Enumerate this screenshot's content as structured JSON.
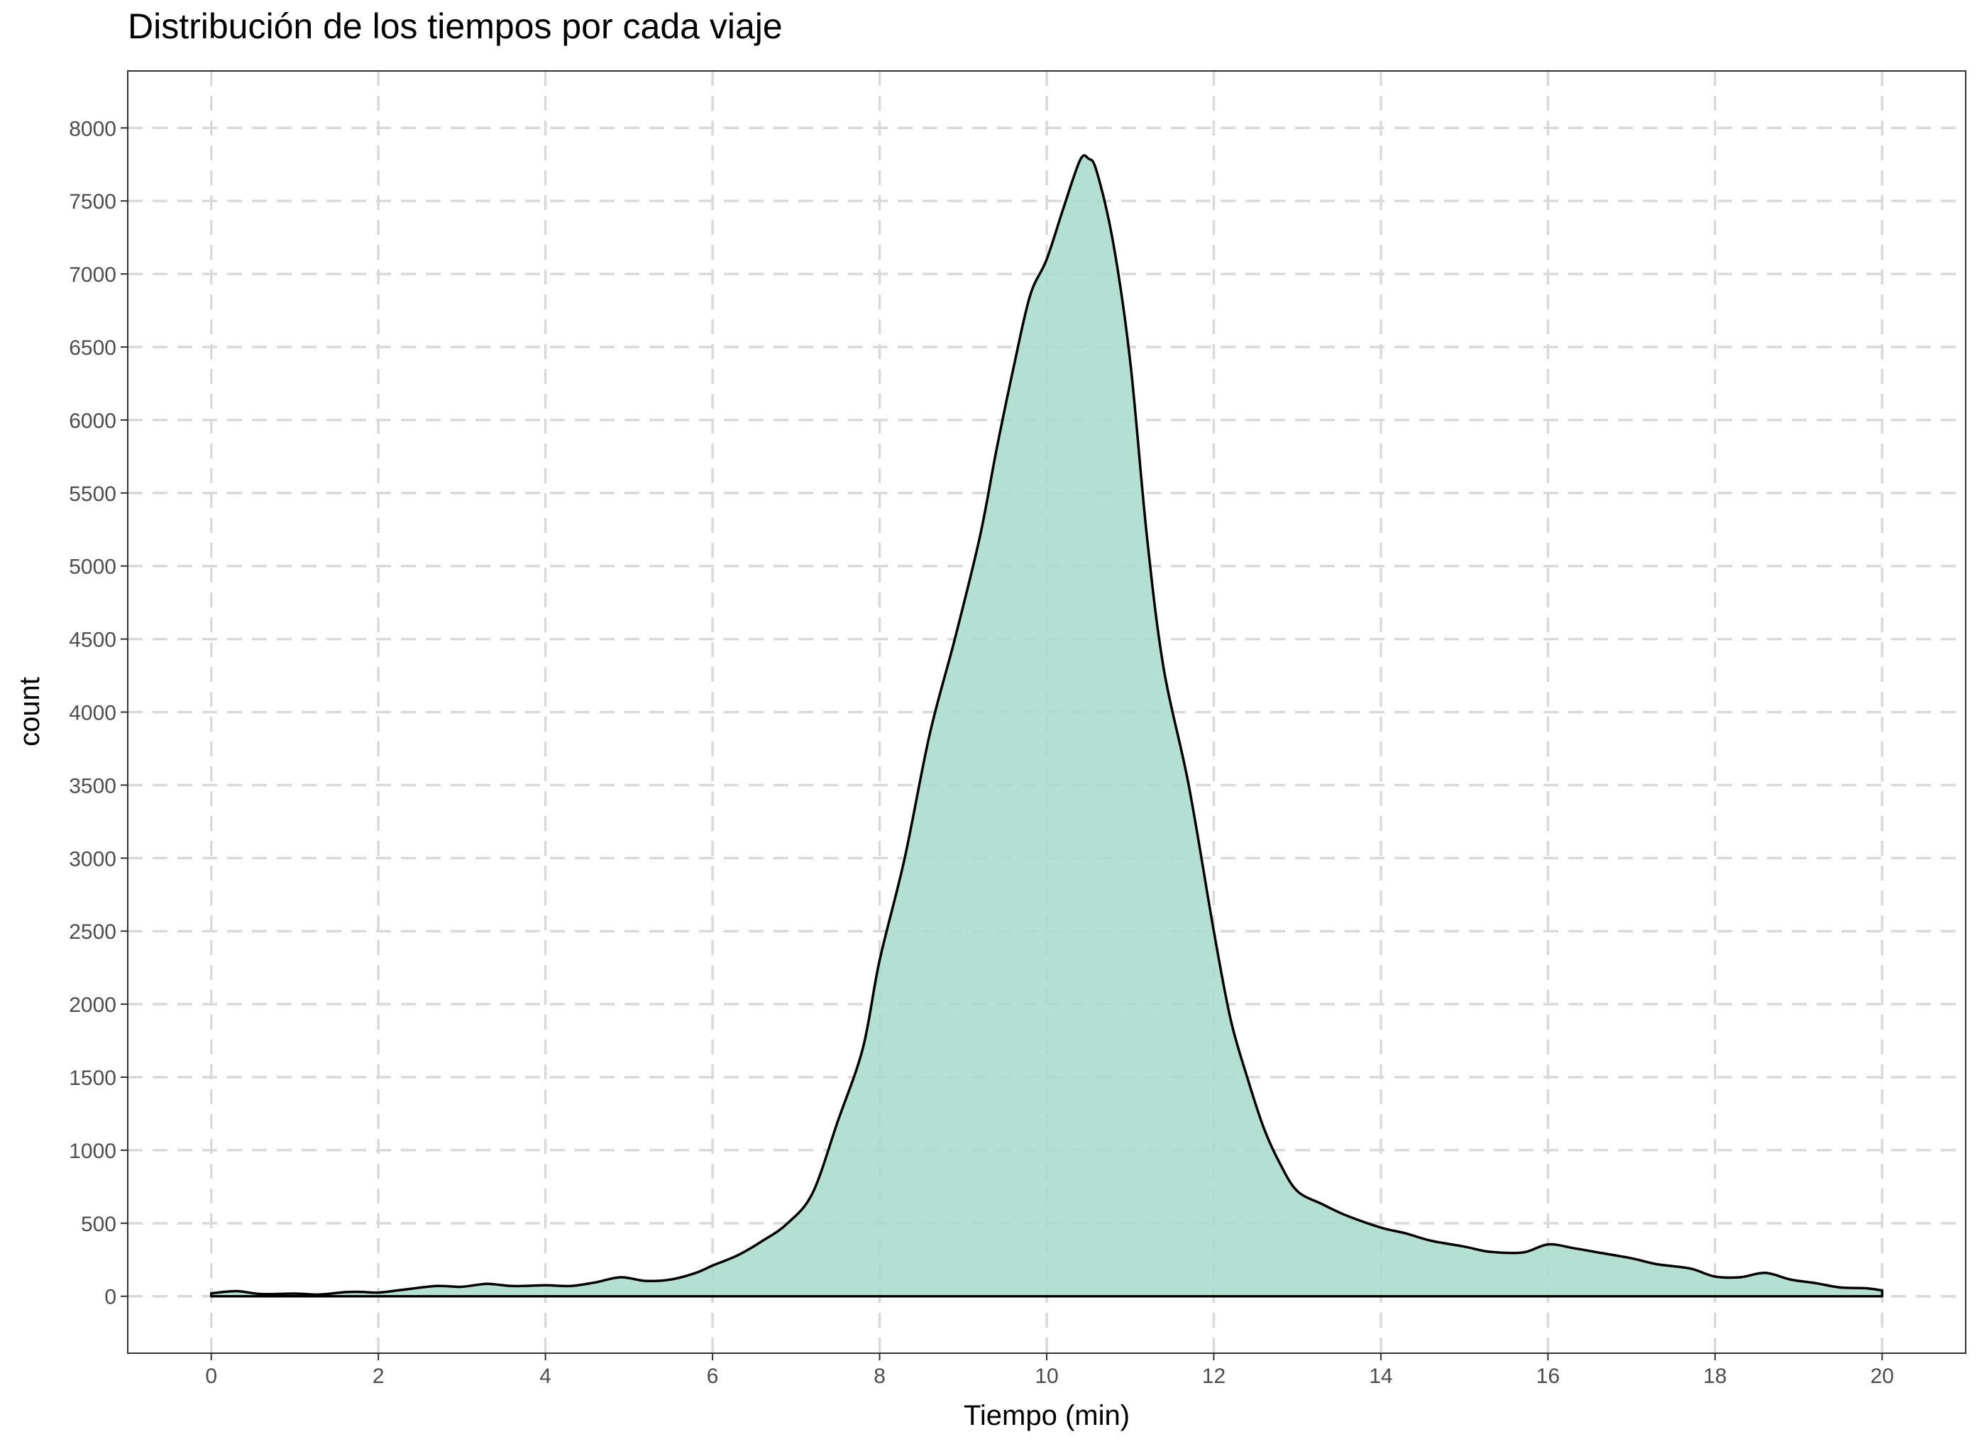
{
  "chart_data": {
    "type": "area",
    "title": "Distribución de los tiempos por cada viaje",
    "xlabel": "Tiempo (min)",
    "ylabel": "count",
    "xlim": [
      -1,
      21
    ],
    "ylim": [
      -390,
      8390
    ],
    "x_ticks": [
      0,
      2,
      4,
      6,
      8,
      10,
      12,
      14,
      16,
      18,
      20
    ],
    "y_ticks": [
      0,
      500,
      1000,
      1500,
      2000,
      2500,
      3000,
      3500,
      4000,
      4500,
      5000,
      5500,
      6000,
      6500,
      7000,
      7500,
      8000
    ],
    "grid": true,
    "legend": "none",
    "fill_color": "#a6dacb",
    "line_color": "#000000",
    "x": [
      0,
      0.3,
      0.6,
      1,
      1.3,
      1.6,
      1.8,
      2,
      2.3,
      2.7,
      3,
      3.3,
      3.6,
      4,
      4.3,
      4.6,
      4.9,
      5.2,
      5.5,
      5.8,
      6,
      6.3,
      6.6,
      6.9,
      7.2,
      7.5,
      7.8,
      8,
      8.3,
      8.6,
      8.9,
      9.2,
      9.4,
      9.6,
      9.8,
      10,
      10.2,
      10.4,
      10.5,
      10.6,
      10.8,
      11,
      11.2,
      11.4,
      11.7,
      12,
      12.2,
      12.4,
      12.6,
      12.8,
      13,
      13.3,
      13.6,
      14,
      14.3,
      14.6,
      15,
      15.3,
      15.7,
      16,
      16.3,
      16.6,
      17,
      17.3,
      17.7,
      18,
      18.3,
      18.6,
      18.9,
      19.2,
      19.5,
      19.8,
      20
    ],
    "y": [
      20,
      35,
      15,
      18,
      12,
      28,
      30,
      25,
      45,
      70,
      65,
      85,
      70,
      75,
      70,
      95,
      130,
      105,
      115,
      160,
      210,
      280,
      380,
      500,
      710,
      1200,
      1700,
      2300,
      3000,
      3850,
      4500,
      5200,
      5800,
      6350,
      6850,
      7100,
      7450,
      7780,
      7790,
      7700,
      7200,
      6400,
      5200,
      4300,
      3500,
      2500,
      1900,
      1500,
      1150,
      900,
      720,
      630,
      550,
      470,
      430,
      380,
      340,
      305,
      300,
      355,
      330,
      300,
      260,
      220,
      190,
      135,
      130,
      160,
      115,
      90,
      60,
      55,
      40
    ]
  }
}
